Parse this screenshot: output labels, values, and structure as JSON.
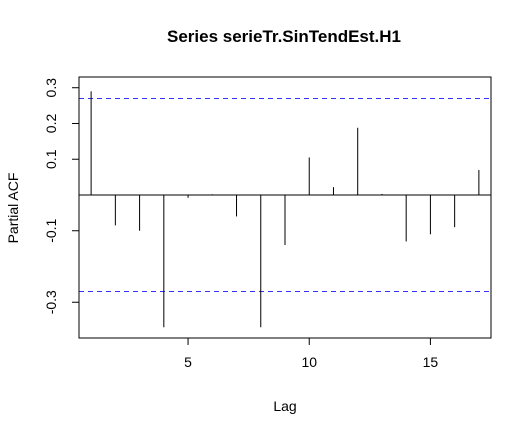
{
  "chart_data": {
    "type": "bar",
    "title": "Series  serieTr.SinTendEst.H1",
    "xlabel": "Lag",
    "ylabel": "Partial ACF",
    "xlim": [
      0.5,
      17.5
    ],
    "ylim": [
      -0.4,
      0.33
    ],
    "x_ticks": [
      5,
      10,
      15
    ],
    "y_ticks": [
      -0.3,
      -0.1,
      0.1,
      0.2,
      0.3
    ],
    "confidence_band": 0.27,
    "confidence_color": "#3333ff",
    "series": [
      {
        "lags": [
          1,
          2,
          3,
          4,
          5,
          6,
          7,
          8,
          9,
          10,
          11,
          12,
          13,
          14,
          15,
          16,
          17
        ],
        "values": [
          0.29,
          -0.085,
          -0.1,
          -0.37,
          -0.008,
          0.002,
          -0.06,
          -0.37,
          -0.14,
          0.105,
          0.022,
          0.188,
          0.003,
          -0.13,
          -0.11,
          -0.09,
          0.07
        ]
      }
    ]
  }
}
